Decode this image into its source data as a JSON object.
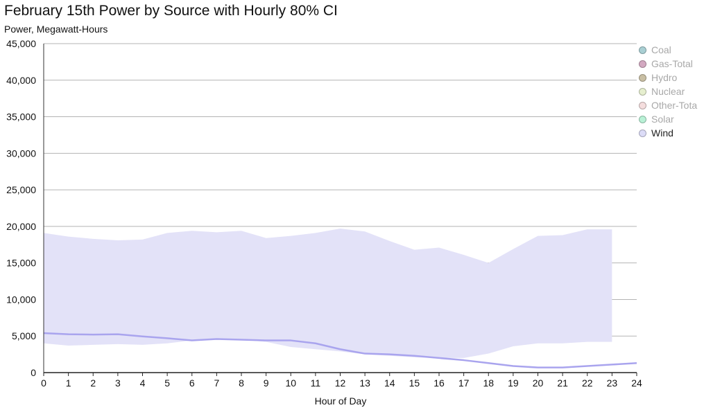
{
  "chart_data": {
    "type": "area",
    "title": "February 15th Power by Source with Hourly 80% CI",
    "subtitle": "Power, Megawatt-Hours",
    "xlabel": "Hour of Day",
    "ylabel": "Power, Megawatt-Hours",
    "xlim": [
      0,
      24
    ],
    "ylim": [
      0,
      45000
    ],
    "x_ticks": [
      "0",
      "1",
      "2",
      "3",
      "4",
      "5",
      "6",
      "7",
      "8",
      "9",
      "10",
      "11",
      "12",
      "13",
      "14",
      "15",
      "16",
      "17",
      "18",
      "19",
      "20",
      "21",
      "22",
      "23",
      "24"
    ],
    "y_ticks": [
      "0",
      "5,000",
      "10,000",
      "15,000",
      "20,000",
      "25,000",
      "30,000",
      "35,000",
      "40,000",
      "45,000"
    ],
    "grid": true,
    "legend_position": "right",
    "legend": [
      {
        "name": "Coal",
        "color": "#a9cfd3",
        "active": false
      },
      {
        "name": "Gas-Total",
        "color": "#d3a9c1",
        "active": false
      },
      {
        "name": "Hydro",
        "color": "#c9bfa4",
        "active": false
      },
      {
        "name": "Nuclear",
        "color": "#e6efcf",
        "active": false
      },
      {
        "name": "Other-Tota",
        "color": "#f5dede",
        "active": false
      },
      {
        "name": "Solar",
        "color": "#b9f1d6",
        "active": false
      },
      {
        "name": "Wind",
        "color": "#dcdcf7",
        "active": true
      }
    ],
    "series": [
      {
        "name": "Wind",
        "color": "#a9a4ee",
        "band_color": "#e3e2f8",
        "x": [
          0,
          1,
          2,
          3,
          4,
          5,
          6,
          7,
          8,
          9,
          10,
          11,
          12,
          13,
          14,
          15,
          16,
          17,
          18,
          19,
          20,
          21,
          22,
          23,
          24
        ],
        "values": [
          5400,
          5250,
          5200,
          5250,
          4950,
          4700,
          4400,
          4600,
          4500,
          4400,
          4400,
          4000,
          3200,
          2600,
          2500,
          2300,
          2000,
          1700,
          1300,
          900,
          700,
          700,
          900,
          1100,
          1300
        ],
        "ci_x": [
          0,
          1,
          2,
          3,
          4,
          5,
          6,
          7,
          8,
          9,
          10,
          11,
          12,
          13,
          14,
          15,
          16,
          17,
          18,
          19,
          20,
          21,
          22,
          23
        ],
        "ci_upper": [
          19100,
          18600,
          18300,
          18100,
          18200,
          19100,
          19400,
          19200,
          19400,
          18400,
          18700,
          19100,
          19700,
          19300,
          18000,
          16800,
          17100,
          16100,
          15000,
          16900,
          18700,
          18800,
          19600,
          19600
        ],
        "ci_lower": [
          4000,
          3700,
          3800,
          3900,
          3800,
          4000,
          4400,
          4700,
          4500,
          4200,
          3500,
          3200,
          2900,
          2500,
          2300,
          2100,
          2000,
          2000,
          2600,
          3600,
          4000,
          4000,
          4200,
          4200
        ]
      }
    ]
  }
}
